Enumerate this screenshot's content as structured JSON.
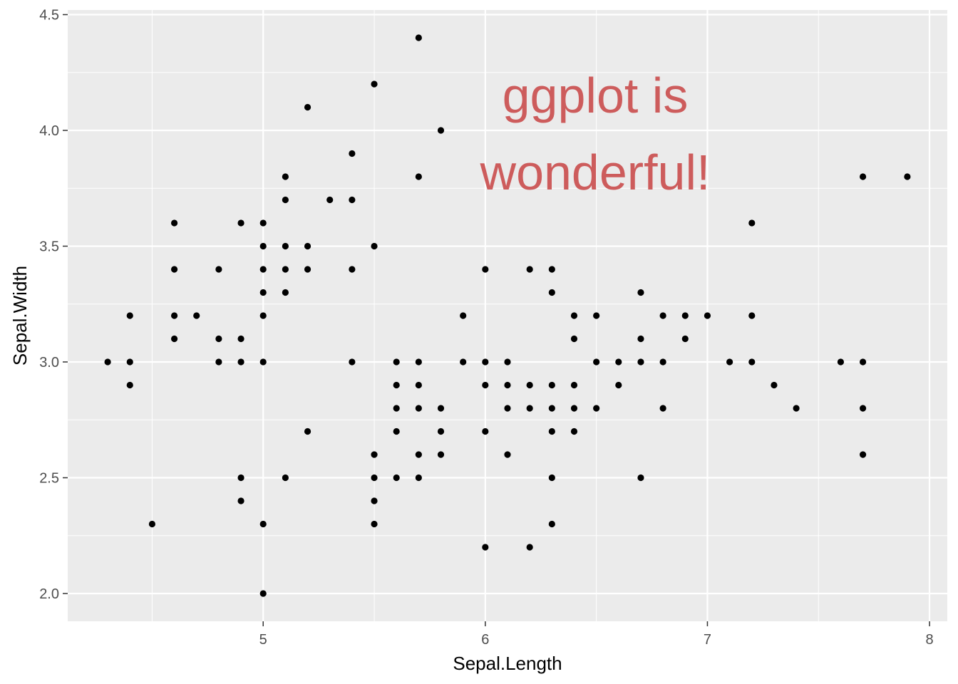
{
  "chart_data": {
    "type": "scatter",
    "xlabel": "Sepal.Length",
    "ylabel": "Sepal.Width",
    "xlim": [
      4.12,
      8.08
    ],
    "ylim": [
      1.88,
      4.52
    ],
    "x_ticks": [
      5,
      6,
      7,
      8
    ],
    "x_tick_labels": [
      "5",
      "6",
      "7",
      "8"
    ],
    "y_ticks": [
      2.0,
      2.5,
      3.0,
      3.5,
      4.0,
      4.5
    ],
    "y_tick_labels": [
      "2.0",
      "2.5",
      "3.0",
      "3.5",
      "4.0",
      "4.5"
    ],
    "grid": true,
    "colors": {
      "panel": "#ebebeb",
      "grid": "#ffffff",
      "point": "#000000",
      "annotation": "#cd5c5c"
    },
    "annotation": {
      "lines": [
        "ggplot is",
        "wonderful!"
      ],
      "x": 6.5,
      "y": 4.05
    },
    "points": [
      [
        4.3,
        3.0
      ],
      [
        4.4,
        2.9
      ],
      [
        4.4,
        3.0
      ],
      [
        4.4,
        3.2
      ],
      [
        4.5,
        2.3
      ],
      [
        4.6,
        3.1
      ],
      [
        4.6,
        3.2
      ],
      [
        4.6,
        3.4
      ],
      [
        4.6,
        3.6
      ],
      [
        4.7,
        3.2
      ],
      [
        4.8,
        3.0
      ],
      [
        4.8,
        3.1
      ],
      [
        4.8,
        3.4
      ],
      [
        4.9,
        2.4
      ],
      [
        4.9,
        2.5
      ],
      [
        4.9,
        3.0
      ],
      [
        4.9,
        3.1
      ],
      [
        4.9,
        3.6
      ],
      [
        5.0,
        2.0
      ],
      [
        5.0,
        2.3
      ],
      [
        5.0,
        3.0
      ],
      [
        5.0,
        3.2
      ],
      [
        5.0,
        3.3
      ],
      [
        5.0,
        3.4
      ],
      [
        5.0,
        3.5
      ],
      [
        5.0,
        3.6
      ],
      [
        5.1,
        2.5
      ],
      [
        5.1,
        3.3
      ],
      [
        5.1,
        3.4
      ],
      [
        5.1,
        3.5
      ],
      [
        5.1,
        3.7
      ],
      [
        5.1,
        3.8
      ],
      [
        5.2,
        2.7
      ],
      [
        5.2,
        3.4
      ],
      [
        5.2,
        3.5
      ],
      [
        5.2,
        4.1
      ],
      [
        5.3,
        3.7
      ],
      [
        5.4,
        3.0
      ],
      [
        5.4,
        3.4
      ],
      [
        5.4,
        3.7
      ],
      [
        5.4,
        3.9
      ],
      [
        5.5,
        2.3
      ],
      [
        5.5,
        2.4
      ],
      [
        5.5,
        2.5
      ],
      [
        5.5,
        2.6
      ],
      [
        5.5,
        3.5
      ],
      [
        5.5,
        4.2
      ],
      [
        5.6,
        2.5
      ],
      [
        5.6,
        2.7
      ],
      [
        5.6,
        2.8
      ],
      [
        5.6,
        2.9
      ],
      [
        5.6,
        3.0
      ],
      [
        5.7,
        2.5
      ],
      [
        5.7,
        2.6
      ],
      [
        5.7,
        2.8
      ],
      [
        5.7,
        2.9
      ],
      [
        5.7,
        3.0
      ],
      [
        5.7,
        3.8
      ],
      [
        5.7,
        4.4
      ],
      [
        5.8,
        2.6
      ],
      [
        5.8,
        2.7
      ],
      [
        5.8,
        2.8
      ],
      [
        5.8,
        4.0
      ],
      [
        5.9,
        3.0
      ],
      [
        5.9,
        3.2
      ],
      [
        6.0,
        2.2
      ],
      [
        6.0,
        2.7
      ],
      [
        6.0,
        2.9
      ],
      [
        6.0,
        3.0
      ],
      [
        6.0,
        3.4
      ],
      [
        6.1,
        2.6
      ],
      [
        6.1,
        2.8
      ],
      [
        6.1,
        2.9
      ],
      [
        6.1,
        3.0
      ],
      [
        6.2,
        2.2
      ],
      [
        6.2,
        2.8
      ],
      [
        6.2,
        2.9
      ],
      [
        6.2,
        3.4
      ],
      [
        6.3,
        2.3
      ],
      [
        6.3,
        2.5
      ],
      [
        6.3,
        2.7
      ],
      [
        6.3,
        2.8
      ],
      [
        6.3,
        2.9
      ],
      [
        6.3,
        3.3
      ],
      [
        6.3,
        3.4
      ],
      [
        6.4,
        2.7
      ],
      [
        6.4,
        2.8
      ],
      [
        6.4,
        2.9
      ],
      [
        6.4,
        3.1
      ],
      [
        6.4,
        3.2
      ],
      [
        6.5,
        2.8
      ],
      [
        6.5,
        3.0
      ],
      [
        6.5,
        3.2
      ],
      [
        6.6,
        2.9
      ],
      [
        6.6,
        3.0
      ],
      [
        6.7,
        2.5
      ],
      [
        6.7,
        3.0
      ],
      [
        6.7,
        3.1
      ],
      [
        6.7,
        3.3
      ],
      [
        6.8,
        2.8
      ],
      [
        6.8,
        3.0
      ],
      [
        6.8,
        3.2
      ],
      [
        6.9,
        3.1
      ],
      [
        6.9,
        3.2
      ],
      [
        7.0,
        3.2
      ],
      [
        7.1,
        3.0
      ],
      [
        7.2,
        3.0
      ],
      [
        7.2,
        3.2
      ],
      [
        7.2,
        3.6
      ],
      [
        7.3,
        2.9
      ],
      [
        7.4,
        2.8
      ],
      [
        7.6,
        3.0
      ],
      [
        7.7,
        2.6
      ],
      [
        7.7,
        2.8
      ],
      [
        7.7,
        3.0
      ],
      [
        7.7,
        3.8
      ],
      [
        7.9,
        3.8
      ]
    ]
  }
}
